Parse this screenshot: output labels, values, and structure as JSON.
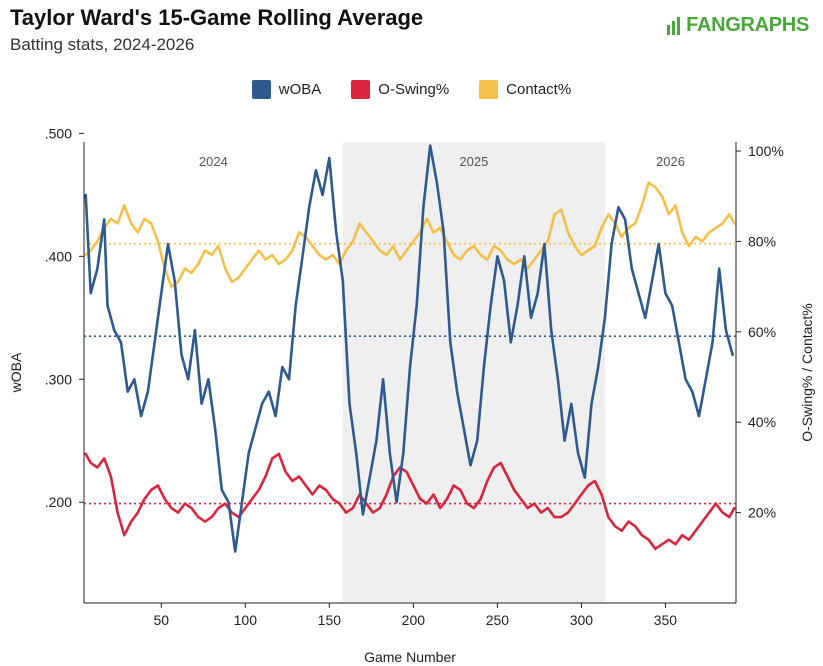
{
  "header": {
    "title": "Taylor Ward's 15-Game Rolling Average",
    "subtitle": "Batting stats, 2024-2026",
    "logo_text": "FANGRAPHS",
    "logo_icon": "fangraphs-logo-icon"
  },
  "colors": {
    "wOBA": "#2e5a8e",
    "O-Swing%": "#d7263d",
    "Contact%": "#f5c04a",
    "season_shade": "#efefef"
  },
  "chart_data": {
    "type": "line",
    "title": "Taylor Ward's 15-Game Rolling Average",
    "subtitle": "Batting stats, 2024-2026",
    "xlabel": "Game Number",
    "ylabel_left": "wOBA",
    "ylabel_right": "O-Swing% / Contact%",
    "xlim": [
      4,
      392
    ],
    "ylim_left": [
      0.118,
      0.493
    ],
    "ylim_right": [
      0.0,
      1.02
    ],
    "x_ticks": [
      50,
      100,
      150,
      200,
      250,
      300,
      350
    ],
    "y_ticks_left": [
      ".200",
      ".300",
      ".400",
      ".500"
    ],
    "y_ticks_left_values": [
      0.2,
      0.3,
      0.4,
      0.5
    ],
    "y_ticks_right": [
      "20%",
      "40%",
      "60%",
      "80%",
      "100%"
    ],
    "y_ticks_right_values": [
      0.2,
      0.4,
      0.6,
      0.8,
      1.0
    ],
    "legend_position": "top-center",
    "grid": false,
    "seasons": [
      {
        "label": "2024",
        "start": 4,
        "end": 158,
        "shaded": false
      },
      {
        "label": "2025",
        "start": 158,
        "end": 314,
        "shaded": true
      },
      {
        "label": "2026",
        "start": 314,
        "end": 392,
        "shaded": false
      }
    ],
    "reference_lines": [
      {
        "series": "wOBA",
        "axis": "left",
        "value": 0.335
      },
      {
        "series": "O-Swing%",
        "axis": "right",
        "value": 0.22
      },
      {
        "series": "Contact%",
        "axis": "right",
        "value": 0.795
      }
    ],
    "series": [
      {
        "name": "wOBA",
        "axis": "left",
        "points": [
          [
            5,
            0.45
          ],
          [
            8,
            0.37
          ],
          [
            12,
            0.39
          ],
          [
            16,
            0.43
          ],
          [
            18,
            0.36
          ],
          [
            22,
            0.34
          ],
          [
            26,
            0.33
          ],
          [
            30,
            0.29
          ],
          [
            34,
            0.3
          ],
          [
            38,
            0.27
          ],
          [
            42,
            0.29
          ],
          [
            46,
            0.33
          ],
          [
            50,
            0.37
          ],
          [
            54,
            0.41
          ],
          [
            58,
            0.38
          ],
          [
            62,
            0.32
          ],
          [
            66,
            0.3
          ],
          [
            70,
            0.34
          ],
          [
            74,
            0.28
          ],
          [
            78,
            0.3
          ],
          [
            82,
            0.26
          ],
          [
            86,
            0.21
          ],
          [
            90,
            0.2
          ],
          [
            94,
            0.16
          ],
          [
            98,
            0.2
          ],
          [
            102,
            0.24
          ],
          [
            106,
            0.26
          ],
          [
            110,
            0.28
          ],
          [
            114,
            0.29
          ],
          [
            118,
            0.27
          ],
          [
            122,
            0.31
          ],
          [
            126,
            0.3
          ],
          [
            130,
            0.36
          ],
          [
            134,
            0.4
          ],
          [
            138,
            0.44
          ],
          [
            142,
            0.47
          ],
          [
            146,
            0.45
          ],
          [
            150,
            0.48
          ],
          [
            154,
            0.42
          ],
          [
            158,
            0.38
          ],
          [
            162,
            0.28
          ],
          [
            166,
            0.24
          ],
          [
            170,
            0.19
          ],
          [
            174,
            0.22
          ],
          [
            178,
            0.25
          ],
          [
            182,
            0.3
          ],
          [
            186,
            0.24
          ],
          [
            190,
            0.2
          ],
          [
            194,
            0.24
          ],
          [
            198,
            0.31
          ],
          [
            202,
            0.36
          ],
          [
            206,
            0.44
          ],
          [
            210,
            0.49
          ],
          [
            214,
            0.46
          ],
          [
            218,
            0.42
          ],
          [
            222,
            0.33
          ],
          [
            226,
            0.29
          ],
          [
            230,
            0.26
          ],
          [
            234,
            0.23
          ],
          [
            238,
            0.25
          ],
          [
            242,
            0.31
          ],
          [
            246,
            0.36
          ],
          [
            250,
            0.4
          ],
          [
            254,
            0.38
          ],
          [
            258,
            0.33
          ],
          [
            262,
            0.36
          ],
          [
            266,
            0.4
          ],
          [
            270,
            0.35
          ],
          [
            274,
            0.37
          ],
          [
            278,
            0.41
          ],
          [
            282,
            0.34
          ],
          [
            286,
            0.3
          ],
          [
            290,
            0.25
          ],
          [
            294,
            0.28
          ],
          [
            298,
            0.24
          ],
          [
            302,
            0.22
          ],
          [
            306,
            0.28
          ],
          [
            310,
            0.31
          ],
          [
            314,
            0.35
          ],
          [
            318,
            0.41
          ],
          [
            322,
            0.44
          ],
          [
            326,
            0.43
          ],
          [
            330,
            0.39
          ],
          [
            334,
            0.37
          ],
          [
            338,
            0.35
          ],
          [
            342,
            0.38
          ],
          [
            346,
            0.41
          ],
          [
            350,
            0.37
          ],
          [
            354,
            0.36
          ],
          [
            358,
            0.33
          ],
          [
            362,
            0.3
          ],
          [
            366,
            0.29
          ],
          [
            370,
            0.27
          ],
          [
            374,
            0.3
          ],
          [
            378,
            0.33
          ],
          [
            382,
            0.39
          ],
          [
            386,
            0.34
          ],
          [
            390,
            0.32
          ]
        ]
      },
      {
        "name": "O-Swing%",
        "axis": "right",
        "points": [
          [
            5,
            0.33
          ],
          [
            8,
            0.31
          ],
          [
            12,
            0.3
          ],
          [
            16,
            0.32
          ],
          [
            20,
            0.28
          ],
          [
            24,
            0.2
          ],
          [
            28,
            0.15
          ],
          [
            32,
            0.18
          ],
          [
            36,
            0.2
          ],
          [
            40,
            0.23
          ],
          [
            44,
            0.25
          ],
          [
            48,
            0.26
          ],
          [
            52,
            0.23
          ],
          [
            56,
            0.21
          ],
          [
            60,
            0.2
          ],
          [
            64,
            0.22
          ],
          [
            68,
            0.21
          ],
          [
            72,
            0.19
          ],
          [
            76,
            0.18
          ],
          [
            80,
            0.19
          ],
          [
            84,
            0.21
          ],
          [
            88,
            0.22
          ],
          [
            92,
            0.2
          ],
          [
            96,
            0.19
          ],
          [
            100,
            0.21
          ],
          [
            104,
            0.23
          ],
          [
            108,
            0.25
          ],
          [
            112,
            0.28
          ],
          [
            116,
            0.32
          ],
          [
            120,
            0.33
          ],
          [
            124,
            0.29
          ],
          [
            128,
            0.27
          ],
          [
            132,
            0.28
          ],
          [
            136,
            0.26
          ],
          [
            140,
            0.24
          ],
          [
            144,
            0.26
          ],
          [
            148,
            0.25
          ],
          [
            152,
            0.23
          ],
          [
            156,
            0.22
          ],
          [
            160,
            0.2
          ],
          [
            164,
            0.21
          ],
          [
            168,
            0.24
          ],
          [
            172,
            0.22
          ],
          [
            176,
            0.2
          ],
          [
            180,
            0.21
          ],
          [
            184,
            0.24
          ],
          [
            188,
            0.28
          ],
          [
            192,
            0.3
          ],
          [
            196,
            0.29
          ],
          [
            200,
            0.26
          ],
          [
            204,
            0.23
          ],
          [
            208,
            0.22
          ],
          [
            212,
            0.24
          ],
          [
            216,
            0.21
          ],
          [
            220,
            0.23
          ],
          [
            224,
            0.26
          ],
          [
            228,
            0.25
          ],
          [
            232,
            0.22
          ],
          [
            236,
            0.21
          ],
          [
            240,
            0.23
          ],
          [
            244,
            0.27
          ],
          [
            248,
            0.3
          ],
          [
            252,
            0.31
          ],
          [
            256,
            0.28
          ],
          [
            260,
            0.25
          ],
          [
            264,
            0.23
          ],
          [
            268,
            0.21
          ],
          [
            272,
            0.22
          ],
          [
            276,
            0.2
          ],
          [
            280,
            0.21
          ],
          [
            284,
            0.19
          ],
          [
            288,
            0.19
          ],
          [
            292,
            0.2
          ],
          [
            296,
            0.22
          ],
          [
            300,
            0.24
          ],
          [
            304,
            0.26
          ],
          [
            308,
            0.27
          ],
          [
            312,
            0.24
          ],
          [
            316,
            0.19
          ],
          [
            320,
            0.17
          ],
          [
            324,
            0.16
          ],
          [
            328,
            0.18
          ],
          [
            332,
            0.17
          ],
          [
            336,
            0.15
          ],
          [
            340,
            0.14
          ],
          [
            344,
            0.12
          ],
          [
            348,
            0.13
          ],
          [
            352,
            0.14
          ],
          [
            356,
            0.13
          ],
          [
            360,
            0.15
          ],
          [
            364,
            0.14
          ],
          [
            368,
            0.16
          ],
          [
            372,
            0.18
          ],
          [
            376,
            0.2
          ],
          [
            380,
            0.22
          ],
          [
            384,
            0.2
          ],
          [
            388,
            0.19
          ],
          [
            391,
            0.21
          ]
        ]
      },
      {
        "name": "Contact%",
        "axis": "right",
        "points": [
          [
            5,
            0.77
          ],
          [
            8,
            0.78
          ],
          [
            12,
            0.8
          ],
          [
            16,
            0.83
          ],
          [
            20,
            0.85
          ],
          [
            24,
            0.84
          ],
          [
            28,
            0.88
          ],
          [
            32,
            0.84
          ],
          [
            36,
            0.82
          ],
          [
            40,
            0.85
          ],
          [
            44,
            0.84
          ],
          [
            48,
            0.8
          ],
          [
            52,
            0.74
          ],
          [
            56,
            0.7
          ],
          [
            60,
            0.71
          ],
          [
            64,
            0.74
          ],
          [
            68,
            0.73
          ],
          [
            72,
            0.75
          ],
          [
            76,
            0.78
          ],
          [
            80,
            0.77
          ],
          [
            84,
            0.79
          ],
          [
            88,
            0.74
          ],
          [
            92,
            0.71
          ],
          [
            96,
            0.72
          ],
          [
            100,
            0.74
          ],
          [
            104,
            0.76
          ],
          [
            108,
            0.78
          ],
          [
            112,
            0.76
          ],
          [
            116,
            0.77
          ],
          [
            120,
            0.75
          ],
          [
            124,
            0.76
          ],
          [
            128,
            0.78
          ],
          [
            132,
            0.82
          ],
          [
            136,
            0.81
          ],
          [
            140,
            0.79
          ],
          [
            144,
            0.77
          ],
          [
            148,
            0.76
          ],
          [
            152,
            0.77
          ],
          [
            156,
            0.75
          ],
          [
            160,
            0.78
          ],
          [
            164,
            0.8
          ],
          [
            168,
            0.84
          ],
          [
            172,
            0.82
          ],
          [
            176,
            0.8
          ],
          [
            180,
            0.78
          ],
          [
            184,
            0.77
          ],
          [
            188,
            0.79
          ],
          [
            192,
            0.76
          ],
          [
            196,
            0.78
          ],
          [
            200,
            0.8
          ],
          [
            204,
            0.82
          ],
          [
            208,
            0.85
          ],
          [
            212,
            0.82
          ],
          [
            216,
            0.83
          ],
          [
            220,
            0.8
          ],
          [
            224,
            0.77
          ],
          [
            228,
            0.76
          ],
          [
            232,
            0.78
          ],
          [
            236,
            0.79
          ],
          [
            240,
            0.77
          ],
          [
            244,
            0.76
          ],
          [
            248,
            0.79
          ],
          [
            252,
            0.78
          ],
          [
            256,
            0.76
          ],
          [
            260,
            0.75
          ],
          [
            264,
            0.76
          ],
          [
            268,
            0.74
          ],
          [
            272,
            0.76
          ],
          [
            276,
            0.78
          ],
          [
            280,
            0.8
          ],
          [
            284,
            0.86
          ],
          [
            288,
            0.87
          ],
          [
            292,
            0.82
          ],
          [
            296,
            0.79
          ],
          [
            300,
            0.77
          ],
          [
            304,
            0.78
          ],
          [
            308,
            0.79
          ],
          [
            312,
            0.83
          ],
          [
            316,
            0.86
          ],
          [
            320,
            0.84
          ],
          [
            324,
            0.81
          ],
          [
            328,
            0.83
          ],
          [
            332,
            0.84
          ],
          [
            336,
            0.88
          ],
          [
            340,
            0.93
          ],
          [
            344,
            0.92
          ],
          [
            348,
            0.9
          ],
          [
            352,
            0.86
          ],
          [
            356,
            0.88
          ],
          [
            360,
            0.82
          ],
          [
            364,
            0.79
          ],
          [
            368,
            0.81
          ],
          [
            372,
            0.8
          ],
          [
            376,
            0.82
          ],
          [
            380,
            0.83
          ],
          [
            384,
            0.84
          ],
          [
            388,
            0.86
          ],
          [
            391,
            0.84
          ]
        ]
      }
    ]
  }
}
